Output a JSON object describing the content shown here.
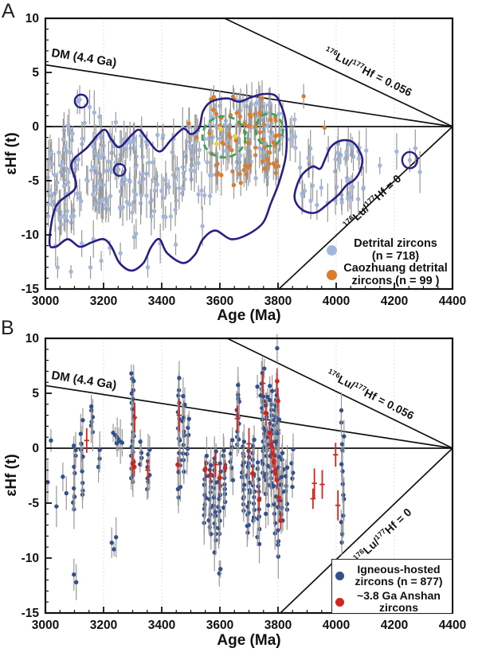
{
  "figure": {
    "panel_a": "A",
    "panel_b": "B"
  },
  "axes": {
    "x_label": "Age (Ma)",
    "y_label": "εHf (t)",
    "x_ticks": [
      3000,
      3200,
      3400,
      3600,
      3800,
      4000,
      4200,
      4400
    ],
    "y_ticks": [
      10,
      5,
      0,
      -5,
      -10,
      -15
    ],
    "x_range": [
      3000,
      4400
    ],
    "y_range": [
      -15,
      10
    ],
    "x_minor_step": 50,
    "y_minor_step": 1,
    "grid": "faint dotted vertical at major ticks"
  },
  "labels": {
    "dm": "DM (4.4 Ga)",
    "lu056": {
      "sup1": "176",
      "base1": "Lu/",
      "sup2": "177",
      "base2": "Hf = 0.056"
    },
    "lu0": {
      "sup1": "176",
      "base1": "Lu/",
      "sup2": "177",
      "base2": "Hf = 0"
    }
  },
  "legend_a": {
    "item1": {
      "line1": "Detrital zircons",
      "line2": "(n = 718)"
    },
    "item2": {
      "line1": "Caozhuang detrital",
      "line2": "zircons (n = 99 )"
    }
  },
  "legend_b": {
    "item1": {
      "line1": "Igneous-hosted",
      "line2": "zircons (n = 877)"
    },
    "item2": {
      "line1": "~3.8 Ga Anshan",
      "line2": "zircons"
    }
  },
  "colors": {
    "light_blue": "#a2b7dc",
    "orange": "#db7d2e",
    "navy": "#33508e",
    "red": "#d2251c",
    "yellow": "#edd13d",
    "contour": "#2a1e85",
    "green": "#38a457",
    "error": "#989898",
    "axis": "#111111",
    "grid": "#d2d2d2"
  },
  "chart_data": [
    {
      "id": "A",
      "type": "scatter",
      "x_range": [
        3000,
        4400
      ],
      "y_range": [
        -15,
        10
      ],
      "ref_lines": {
        "chur": [
          [
            3000,
            0
          ],
          [
            4400,
            0
          ]
        ],
        "dm": [
          [
            3000,
            5.7
          ],
          [
            4400,
            0
          ]
        ],
        "lu056": [
          [
            3616,
            10
          ],
          [
            4400,
            0
          ]
        ],
        "lu0": [
          [
            4400,
            0
          ],
          [
            3803,
            -15
          ]
        ]
      },
      "series": [
        {
          "name": "Detrital zircons",
          "n": 718,
          "color": "light_blue",
          "clusters": [
            [
              3005,
              3120,
              -9.5,
              -2.0,
              55
            ],
            [
              3060,
              3135,
              -2.0,
              0.5,
              10
            ],
            [
              3120,
              3260,
              -8.0,
              -0.5,
              60
            ],
            [
              3260,
              3460,
              -8.5,
              -0.5,
              75
            ],
            [
              3460,
              3570,
              -6.5,
              0.0,
              35
            ],
            [
              3560,
              3820,
              -5.0,
              2.5,
              80
            ],
            [
              3820,
              3862,
              -2.0,
              1.0,
              6
            ],
            [
              3868,
              4105,
              -7.3,
              -1.6,
              48
            ]
          ],
          "points": [
            [
              3110,
              2.3
            ],
            [
              3118,
              2.5
            ],
            [
              3152,
              1.8
            ],
            [
              3168,
              1.3
            ],
            [
              3186,
              0.9
            ],
            [
              3242,
              0.4
            ],
            [
              3035,
              -11
            ],
            [
              3042,
              -13
            ],
            [
              3088,
              -13.4
            ],
            [
              3125,
              -10.8
            ],
            [
              3155,
              -13
            ],
            [
              3165,
              -10.4
            ],
            [
              3192,
              -12.4
            ],
            [
              3222,
              -11.2
            ],
            [
              3258,
              -11.7
            ],
            [
              3305,
              -10.2
            ],
            [
              3352,
              -13
            ],
            [
              3395,
              -10.8
            ],
            [
              3448,
              -10.9
            ],
            [
              3312,
              -9.9
            ],
            [
              3540,
              -9.2
            ],
            [
              4150,
              -3.6
            ],
            [
              4208,
              -2.3
            ],
            [
              4253,
              -3.1
            ],
            [
              4272,
              -2.0
            ],
            [
              4288,
              -4.2
            ]
          ]
        },
        {
          "name": "Caozhuang detrital zircons",
          "n": 99,
          "color": "orange",
          "clusters": [
            [
              3555,
              3805,
              -4.5,
              2.8,
              72
            ]
          ],
          "points": [
            [
              3493,
              0.3
            ],
            [
              3520,
              -1.0
            ],
            [
              3888,
              2.8
            ],
            [
              3960,
              -0.1
            ],
            [
              3648,
              -5.4
            ],
            [
              3672,
              -5.2
            ]
          ]
        },
        {
          "name": "highlighted zircons",
          "color": "yellow",
          "no_err": true,
          "clusters": [],
          "points": [
            [
              3602,
              -0.2
            ],
            [
              3589,
              -1.6
            ],
            [
              3652,
              -0.9
            ]
          ]
        }
      ],
      "contours": [
        [
          [
            3014,
            -10.7
          ],
          [
            3036,
            -7.4
          ],
          [
            3104,
            -5.6
          ],
          [
            3090,
            -3.4
          ],
          [
            3145,
            -1.9
          ],
          [
            3200,
            -0.3
          ],
          [
            3227,
            -1.2
          ],
          [
            3255,
            -1.9
          ],
          [
            3296,
            -0.8
          ],
          [
            3323,
            -0.3
          ],
          [
            3351,
            -1.2
          ],
          [
            3392,
            -2.3
          ],
          [
            3433,
            -1.2
          ],
          [
            3474,
            -0.2
          ],
          [
            3501,
            -0.7
          ],
          [
            3529,
            -0.1
          ],
          [
            3542,
            1.4
          ],
          [
            3570,
            2.3
          ],
          [
            3625,
            2.6
          ],
          [
            3666,
            2.3
          ],
          [
            3707,
            2.7
          ],
          [
            3748,
            3.0
          ],
          [
            3789,
            2.9
          ],
          [
            3808,
            2.1
          ],
          [
            3825,
            0.7
          ],
          [
            3830,
            -1.2
          ],
          [
            3825,
            -3.0
          ],
          [
            3803,
            -5.2
          ],
          [
            3775,
            -7.1
          ],
          [
            3748,
            -8.9
          ],
          [
            3693,
            -10.0
          ],
          [
            3638,
            -10.4
          ],
          [
            3584,
            -9.6
          ],
          [
            3542,
            -10.4
          ],
          [
            3515,
            -11.8
          ],
          [
            3474,
            -12.6
          ],
          [
            3419,
            -11.7
          ],
          [
            3392,
            -10.4
          ],
          [
            3364,
            -11.1
          ],
          [
            3337,
            -12.6
          ],
          [
            3296,
            -13.3
          ],
          [
            3255,
            -12.6
          ],
          [
            3227,
            -11.1
          ],
          [
            3200,
            -10.4
          ],
          [
            3159,
            -10.7
          ],
          [
            3118,
            -11.1
          ],
          [
            3077,
            -10.4
          ],
          [
            3036,
            -11.1
          ]
        ],
        [
          [
            3857,
            -6.3
          ],
          [
            3879,
            -4.6
          ],
          [
            3918,
            -3.7
          ],
          [
            3945,
            -3.9
          ],
          [
            3962,
            -3.0
          ],
          [
            3981,
            -1.9
          ],
          [
            4016,
            -1.3
          ],
          [
            4055,
            -1.4
          ],
          [
            4077,
            -2.1
          ],
          [
            4090,
            -3.0
          ],
          [
            4082,
            -4.1
          ],
          [
            4063,
            -4.9
          ],
          [
            4036,
            -5.4
          ],
          [
            4008,
            -6.3
          ],
          [
            3973,
            -7.1
          ],
          [
            3934,
            -7.9
          ],
          [
            3899,
            -7.9
          ],
          [
            3868,
            -7.3
          ]
        ]
      ],
      "contour_circles": [
        [
          3123,
          2.35,
          22,
          0.6
        ],
        [
          3255,
          -4.0,
          20,
          0.55
        ],
        [
          4253,
          -3.1,
          26,
          0.75
        ]
      ],
      "green_ellipses": [
        [
          3614,
          -0.95,
          74,
          1.9
        ],
        [
          3770,
          -0.3,
          47,
          1.5
        ]
      ]
    },
    {
      "id": "B",
      "type": "scatter",
      "x_range": [
        3000,
        4400
      ],
      "y_range": [
        -15,
        10
      ],
      "ref_lines": {
        "chur": [
          [
            3000,
            0
          ],
          [
            4400,
            0
          ]
        ],
        "dm": [
          [
            3000,
            5.7
          ],
          [
            4400,
            0
          ]
        ],
        "lu056": [
          [
            3625,
            10
          ],
          [
            4400,
            0
          ]
        ],
        "lu0": [
          [
            4400,
            0
          ],
          [
            3808,
            -15
          ]
        ]
      },
      "series": [
        {
          "name": "Igneous-hosted zircons",
          "n": 877,
          "color": "navy",
          "columns": [
            [
              3100,
              9,
              -6,
              1
            ],
            [
              3125,
              9,
              -5,
              2.9
            ],
            [
              3160,
              6,
              1.2,
              4.2
            ],
            [
              3185,
              3,
              -2,
              0
            ],
            [
              3300,
              22,
              -3.5,
              7.2
            ],
            [
              3330,
              4,
              -2,
              1
            ],
            [
              3355,
              8,
              -4,
              0
            ],
            [
              3460,
              16,
              -5,
              6.6
            ],
            [
              3475,
              10,
              -2.5,
              5
            ],
            [
              3490,
              5,
              -1,
              3.5
            ],
            [
              3550,
              12,
              -7,
              -0.5
            ],
            [
              3565,
              12,
              -8,
              -1
            ],
            [
              3582,
              16,
              -9.5,
              0
            ],
            [
              3598,
              12,
              -8,
              -1
            ],
            [
              3615,
              10,
              -5.5,
              0
            ],
            [
              3640,
              6,
              -3,
              1
            ],
            [
              3662,
              12,
              0,
              5.8
            ],
            [
              3680,
              14,
              -6,
              1
            ],
            [
              3698,
              16,
              -8,
              0
            ],
            [
              3715,
              14,
              -7,
              1
            ],
            [
              3732,
              12,
              -9,
              -1
            ],
            [
              3748,
              18,
              -3,
              7.6
            ],
            [
              3762,
              16,
              -6,
              5
            ],
            [
              3776,
              18,
              -4,
              6
            ],
            [
              3790,
              16,
              -8,
              6
            ],
            [
              3797,
              10,
              -3,
              5
            ],
            [
              3802,
              14,
              -10.6,
              3
            ],
            [
              3815,
              10,
              -7,
              0
            ],
            [
              3830,
              6,
              -6,
              -1
            ],
            [
              3848,
              5,
              -4,
              0
            ],
            [
              4022,
              14,
              -9,
              3.6
            ]
          ],
          "points": [
            [
              3019,
              0.7
            ],
            [
              3008,
              -3.1
            ],
            [
              3038,
              -5.3
            ],
            [
              3060,
              -2.6
            ],
            [
              3072,
              -4.1
            ],
            [
              3098,
              -11.5
            ],
            [
              3106,
              -12.2
            ],
            [
              3228,
              -8.6
            ],
            [
              3236,
              -9.2
            ],
            [
              3243,
              -8.1
            ],
            [
              3233,
              1.4
            ],
            [
              3240,
              1.2
            ],
            [
              3247,
              1.0
            ],
            [
              3252,
              0.8
            ],
            [
              3258,
              0.6
            ],
            [
              3264,
              0.5
            ],
            [
              3245,
              0.45
            ],
            [
              3729,
              5.6
            ],
            [
              3740,
              4.8
            ],
            [
              3797,
              9.1
            ],
            [
              3598,
              -11.4
            ],
            [
              3602,
              -11.0
            ]
          ]
        },
        {
          "name": "~3.8 Ga Anshan zircons",
          "color": "red",
          "red_points": [
            [
              3142,
              0.7,
              "c"
            ],
            [
              3307,
              2.8,
              "c"
            ],
            [
              3300,
              -1.4,
              "d"
            ],
            [
              3306,
              -1.7,
              "d"
            ],
            [
              3352,
              -2.0,
              "c"
            ],
            [
              3460,
              3.0,
              "c"
            ],
            [
              3455,
              -1.5,
              "d"
            ],
            [
              3550,
              -1.9,
              "d"
            ],
            [
              3568,
              -2.4,
              "d"
            ],
            [
              3585,
              -1.5,
              "c"
            ],
            [
              3600,
              -2.7,
              "d"
            ],
            [
              3618,
              -1.8,
              "d"
            ],
            [
              3660,
              2.7,
              "c"
            ],
            [
              3700,
              0.4,
              "c"
            ],
            [
              3712,
              -2.3,
              "d"
            ],
            [
              3735,
              -4.7,
              "d"
            ],
            [
              3748,
              5.9,
              "c"
            ],
            [
              3758,
              3.2,
              "d"
            ],
            [
              3797,
              6.1,
              "d"
            ],
            [
              3800,
              4.3,
              "d"
            ],
            [
              3770,
              1.4,
              "d"
            ],
            [
              3776,
              0.3,
              "d"
            ],
            [
              3781,
              -0.5,
              "d"
            ],
            [
              3786,
              -1.2,
              "d"
            ],
            [
              3791,
              -2.0,
              "d"
            ],
            [
              3796,
              -2.9,
              "d"
            ],
            [
              3803,
              -4.5,
              "d"
            ],
            [
              3809,
              -6.6,
              "d"
            ],
            [
              3920,
              -4.6,
              "c"
            ],
            [
              3925,
              -3.2,
              "c"
            ],
            [
              3952,
              -3.3,
              "c"
            ],
            [
              3998,
              -0.6,
              "c"
            ],
            [
              4006,
              -5.2,
              "c"
            ]
          ]
        }
      ]
    }
  ]
}
